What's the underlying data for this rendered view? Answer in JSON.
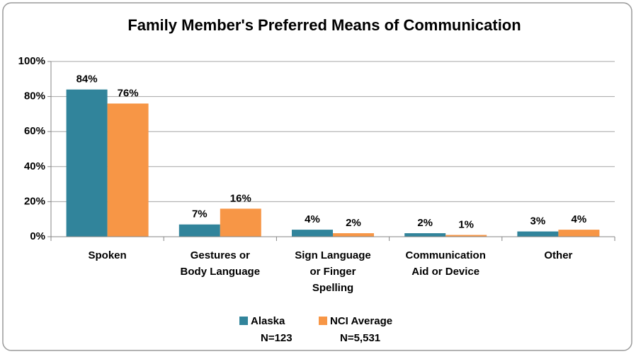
{
  "chart_data": {
    "type": "bar",
    "title": "Family Member's Preferred Means of Communication",
    "categories": [
      [
        "Spoken"
      ],
      [
        "Gestures or",
        "Body Language"
      ],
      [
        "Sign Language",
        "or Finger",
        "Spelling"
      ],
      [
        "Communication",
        "Aid or Device"
      ],
      [
        "Other"
      ]
    ],
    "series": [
      {
        "name": "Alaska",
        "sample_size": "N=123",
        "color": "#31849b",
        "values": [
          84,
          7,
          4,
          2,
          3
        ],
        "value_labels": [
          "84%",
          "7%",
          "4%",
          "2%",
          "3%"
        ]
      },
      {
        "name": "NCI Average",
        "sample_size": "N=5,531",
        "color": "#f79646",
        "values": [
          76,
          16,
          2,
          1,
          4
        ],
        "value_labels": [
          "76%",
          "16%",
          "2%",
          "1%",
          "4%"
        ]
      }
    ],
    "ylim": [
      0,
      100
    ],
    "yticks": [
      {
        "value": 0,
        "label": "0%"
      },
      {
        "value": 20,
        "label": "20%"
      },
      {
        "value": 40,
        "label": "40%"
      },
      {
        "value": 60,
        "label": "60%"
      },
      {
        "value": 80,
        "label": "80%"
      },
      {
        "value": 100,
        "label": "100%"
      }
    ],
    "grid": true,
    "legend": "bottom"
  }
}
